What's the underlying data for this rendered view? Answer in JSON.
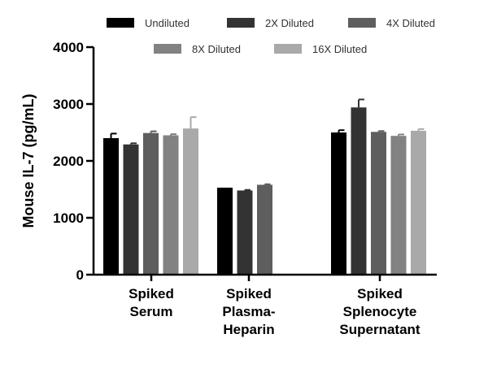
{
  "chart_data": {
    "type": "bar",
    "title": "",
    "xlabel": "",
    "ylabel": "Mouse  IL-7 (pg/mL)",
    "ylim": [
      0,
      4000
    ],
    "yticks": [
      0,
      1000,
      2000,
      3000,
      4000
    ],
    "categories": [
      [
        "Spiked",
        "Serum"
      ],
      [
        "Spiked",
        "Plasma-",
        "Heparin"
      ],
      [
        "Spiked",
        "Splenocyte",
        "Supernatant"
      ]
    ],
    "legend_position": "top",
    "series": [
      {
        "name": "Undiluted",
        "color": "#000000",
        "values": [
          2400,
          1530,
          2500
        ],
        "errors": [
          80,
          0,
          40
        ]
      },
      {
        "name": "2X Diluted",
        "color": "#333333",
        "values": [
          2290,
          1480,
          2940
        ],
        "errors": [
          20,
          10,
          140
        ]
      },
      {
        "name": "4X Diluted",
        "color": "#5e5e5e",
        "values": [
          2490,
          1580,
          2510
        ],
        "errors": [
          30,
          10,
          15
        ]
      },
      {
        "name": "8X Diluted",
        "color": "#828282",
        "values": [
          2450,
          null,
          2440
        ],
        "errors": [
          20,
          null,
          25
        ]
      },
      {
        "name": "16X Diluted",
        "color": "#a9a9a9",
        "values": [
          2570,
          null,
          2530
        ],
        "errors": [
          200,
          null,
          30
        ]
      }
    ]
  }
}
